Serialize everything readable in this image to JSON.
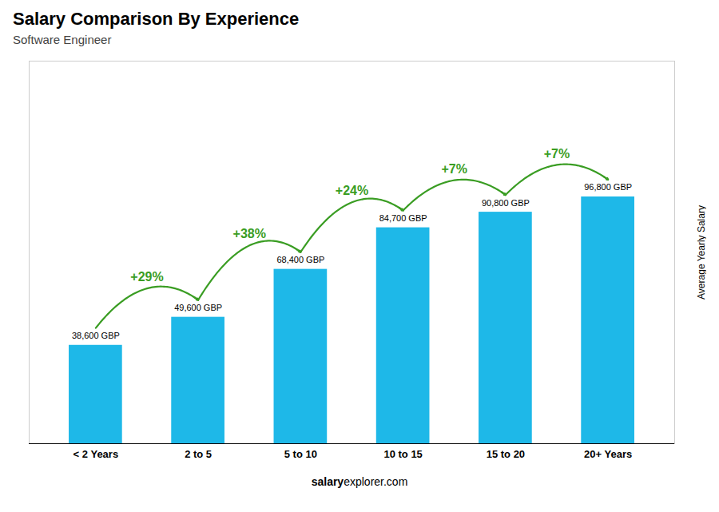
{
  "chart_data": {
    "type": "bar",
    "title": "Salary Comparison By Experience",
    "subtitle": "Software Engineer",
    "categories": [
      "< 2 Years",
      "2 to 5",
      "5 to 10",
      "10 to 15",
      "15 to 20",
      "20+ Years"
    ],
    "values": [
      38600,
      49600,
      68400,
      84700,
      90800,
      96800
    ],
    "value_labels": [
      "38,600 GBP",
      "49,600 GBP",
      "68,400 GBP",
      "84,700 GBP",
      "90,800 GBP",
      "96,800 GBP"
    ],
    "data_labels": true,
    "annotations": [
      "+29%",
      "+38%",
      "+24%",
      "+7%",
      "+7%"
    ],
    "color": "#1eb8e8",
    "ylabel": "Average Yearly Salary",
    "ylim": [
      0,
      150040
    ],
    "tick_labels": "x",
    "caption": [
      "salary",
      "explorer.com"
    ]
  }
}
